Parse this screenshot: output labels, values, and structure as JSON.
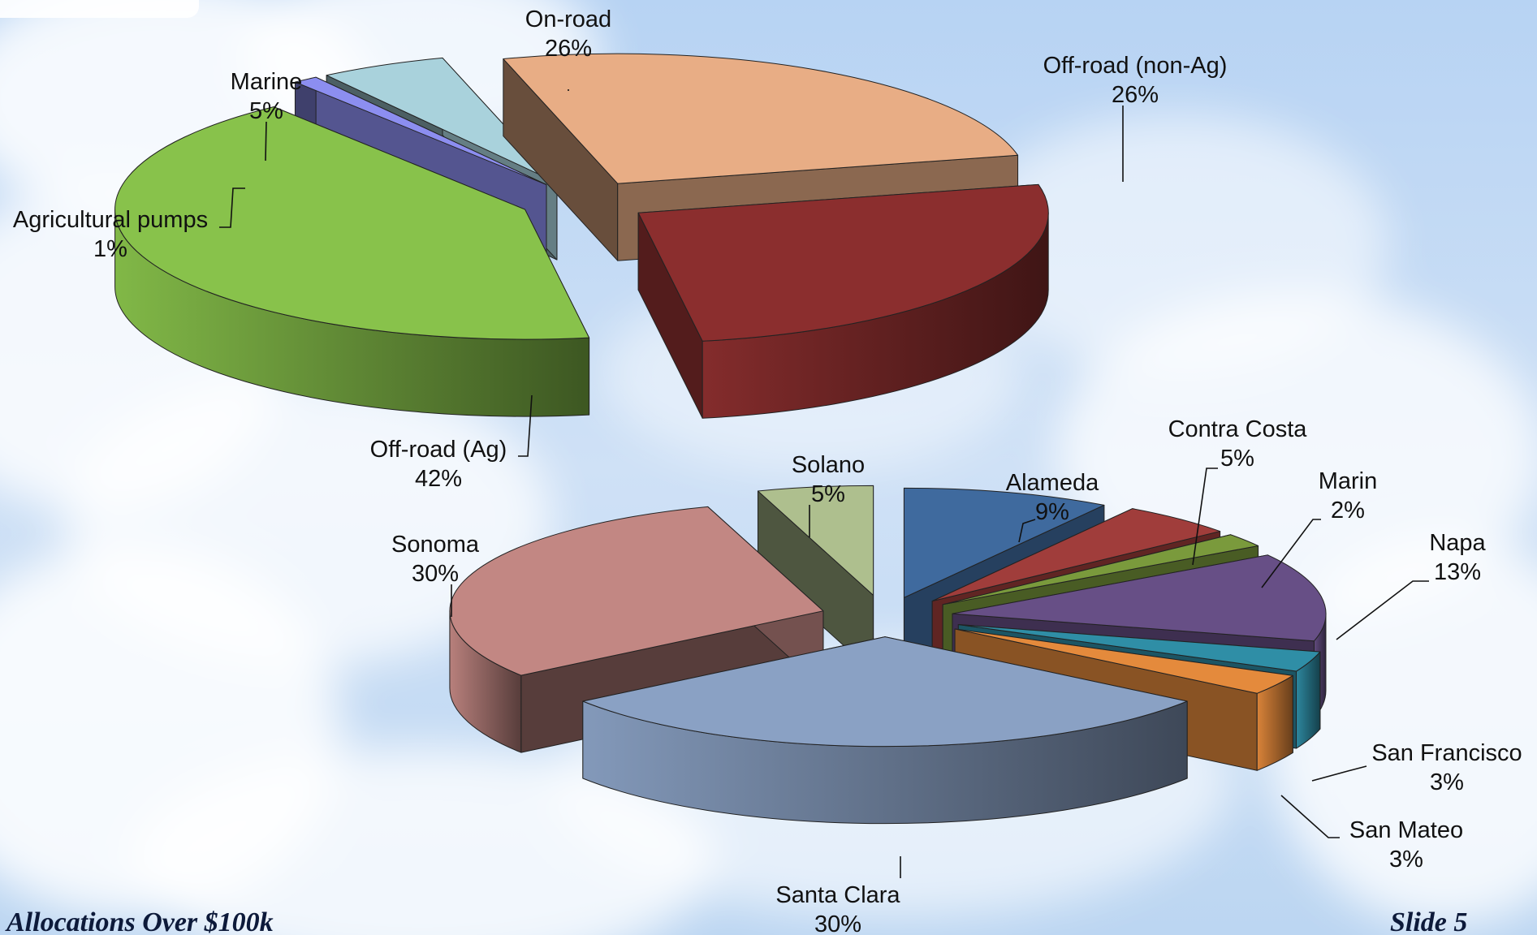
{
  "slide": {
    "footer_left": "Allocations Over $100k",
    "footer_right": "Slide 5"
  },
  "chart_data": [
    {
      "type": "pie",
      "style": "exploded 3d pie",
      "categories": [
        "On-road",
        "Off-road (non-Ag)",
        "Off-road (Ag)",
        "Agricultural pumps",
        "Marine"
      ],
      "values": [
        26,
        26,
        42,
        1,
        5
      ],
      "labels": [
        "On-road 26%",
        "Off-road (non-Ag) 26%",
        "Off-road (Ag) 42%",
        "Agricultural pumps 1%",
        "Marine 5%"
      ],
      "colors": [
        "#e8ad85",
        "#8b2e2e",
        "#88c24b",
        "#8c8ef0",
        "#a9d2dc"
      ]
    },
    {
      "type": "pie",
      "style": "exploded 3d pie",
      "categories": [
        "Alameda",
        "Contra Costa",
        "Marin",
        "Napa",
        "San Francisco",
        "San Mateo",
        "Santa Clara",
        "Sonoma",
        "Solano"
      ],
      "values": [
        9,
        5,
        2,
        13,
        3,
        3,
        30,
        30,
        5
      ],
      "labels": [
        "Alameda 9%",
        "Contra Costa 5%",
        "Marin 2%",
        "Napa 13%",
        "San Francisco 3%",
        "San Mateo 3%",
        "Santa Clara 30%",
        "Sonoma 30%",
        "Solano 5%"
      ],
      "colors": [
        "#3f6a9e",
        "#a03d3b",
        "#7a9a3c",
        "#674f86",
        "#2f8ea6",
        "#e48a3c",
        "#8aa1c4",
        "#c28783",
        "#aebf8e"
      ]
    }
  ]
}
